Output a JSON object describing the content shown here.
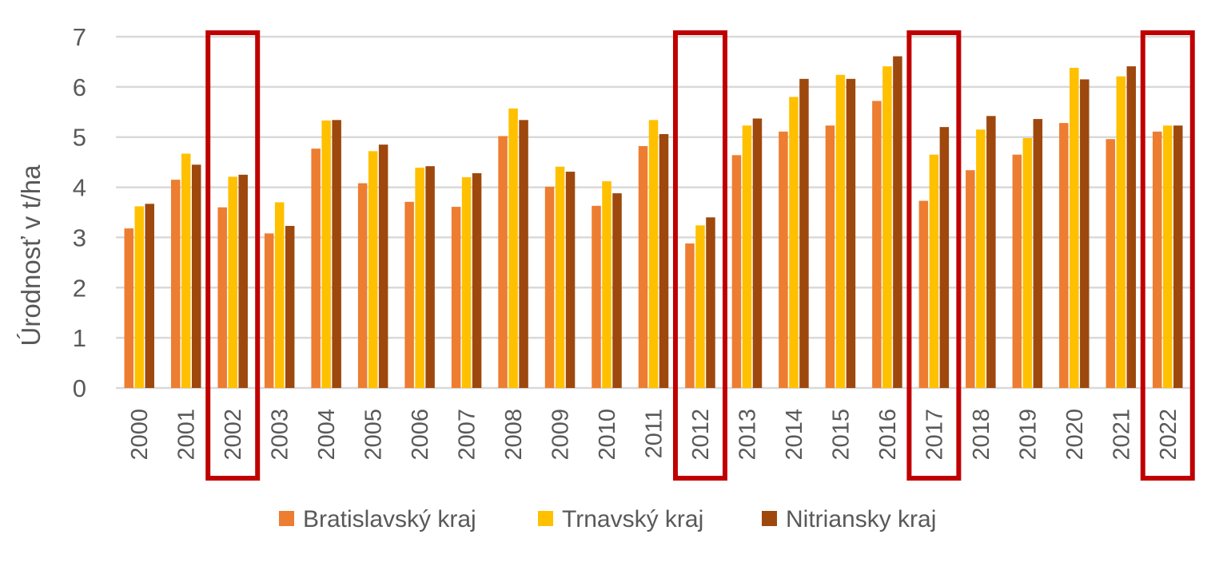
{
  "chart_data": {
    "type": "bar",
    "title": "",
    "xlabel": "",
    "ylabel": "Úrodnosť v t/ha",
    "ylim": [
      0,
      7
    ],
    "yticks": [
      0,
      1,
      2,
      3,
      4,
      5,
      6,
      7
    ],
    "grid": true,
    "legend_position": "bottom",
    "categories": [
      "2000",
      "2001",
      "2002",
      "2003",
      "2004",
      "2005",
      "2006",
      "2007",
      "2008",
      "2009",
      "2010",
      "2011",
      "2012",
      "2013",
      "2014",
      "2015",
      "2016",
      "2017",
      "2018",
      "2019",
      "2020",
      "2021",
      "2022"
    ],
    "series": [
      {
        "name": "Bratislavský kraj",
        "color": "#ED7D31",
        "values": [
          3.18,
          4.15,
          3.6,
          3.08,
          4.77,
          4.08,
          3.71,
          3.61,
          5.02,
          4.01,
          3.63,
          4.82,
          2.88,
          4.64,
          5.11,
          5.23,
          5.72,
          3.73,
          4.34,
          4.65,
          5.28,
          4.96,
          5.11
        ]
      },
      {
        "name": "Trnavský kraj",
        "color": "#FFC000",
        "values": [
          3.62,
          4.67,
          4.21,
          3.7,
          5.33,
          4.72,
          4.39,
          4.2,
          5.57,
          4.41,
          4.12,
          5.34,
          3.24,
          5.23,
          5.8,
          6.24,
          6.41,
          4.65,
          5.15,
          4.98,
          6.38,
          6.21,
          5.23
        ]
      },
      {
        "name": "Nitriansky kraj",
        "color": "#9E480E",
        "values": [
          3.67,
          4.45,
          4.25,
          3.23,
          5.34,
          4.85,
          4.42,
          4.28,
          5.34,
          4.31,
          3.88,
          5.06,
          3.4,
          5.37,
          6.16,
          6.16,
          6.61,
          5.2,
          5.42,
          5.36,
          6.15,
          6.41,
          5.23
        ]
      }
    ],
    "highlighted_categories": [
      "2002",
      "2012",
      "2017",
      "2022"
    ],
    "highlight_color": "#C00000",
    "gridline_color": "#D9D9D9"
  }
}
